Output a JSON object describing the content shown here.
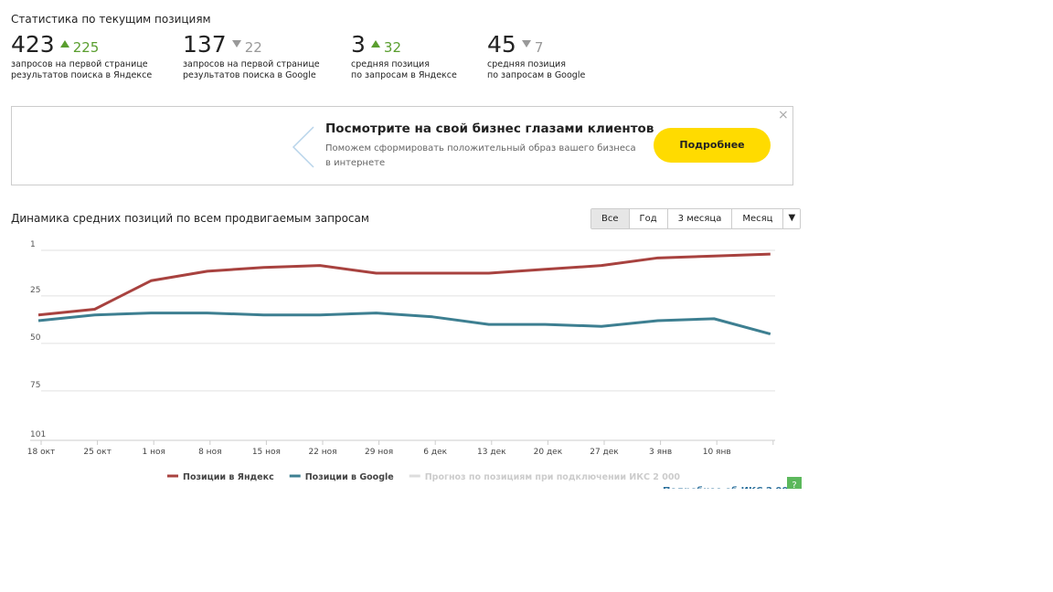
{
  "header": {
    "title": "Статистика по текущим позициям"
  },
  "stats": [
    {
      "value": 423,
      "change": 225,
      "trend": "up",
      "label_lines": [
        "запросов на первой странице",
        "результатов поиска в Яндексе"
      ]
    },
    {
      "value": 137,
      "change": 22,
      "trend": "down",
      "label_lines": [
        "запросов на первой странице",
        "результатов поиска в Google"
      ]
    },
    {
      "value": 3,
      "change": 32,
      "trend": "up",
      "label_lines": [
        "средняя позиция",
        "по запросам в Яндексе"
      ]
    },
    {
      "value": 45,
      "change": 7,
      "trend": "down",
      "label_lines": [
        "средняя позиция",
        "по запросам в Google"
      ]
    }
  ],
  "banner": {
    "title": "Посмотрите на свой бизнес глазами клиентов",
    "text_lines": [
      "Поможем сформировать положительный образ вашего бизнеса",
      "в интернете"
    ],
    "button": "Подробнее",
    "close": "×"
  },
  "period_buttons": [
    "Все",
    "Год",
    "3 месяца",
    "Месяц",
    "▼"
  ],
  "chart_data": {
    "type": "line",
    "title": "Динамика средних позиций по всем продвигаемым запросам",
    "categories": [
      "18 окт",
      "25 окт",
      "1 ноя",
      "8 ноя",
      "15 ноя",
      "22 ноя",
      "29 ноя",
      "6 дек",
      "13 дек",
      "20 дек",
      "27 дек",
      "3 янв",
      "10 янв",
      null
    ],
    "series": [
      {
        "name": "Позиции в Яндекс",
        "color": "#a8423f",
        "values": [
          35,
          32,
          17,
          12,
          10,
          9,
          13,
          13,
          13,
          11,
          9,
          5,
          4,
          3
        ]
      },
      {
        "name": "Позиции в Google",
        "color": "#3d7f91",
        "values": [
          38,
          35,
          34,
          34,
          35,
          35,
          34,
          36,
          40,
          40,
          41,
          38,
          37,
          45
        ]
      }
    ],
    "legend_extra": "Прогноз по позициям при подключении ИКС 2 000",
    "ylim": [
      1,
      101
    ],
    "yticks": [
      1,
      25,
      50,
      75,
      101
    ],
    "inverted": true,
    "grid": true,
    "footer_link": "Подробнее об ИКС 2 000",
    "help_button": "?"
  }
}
